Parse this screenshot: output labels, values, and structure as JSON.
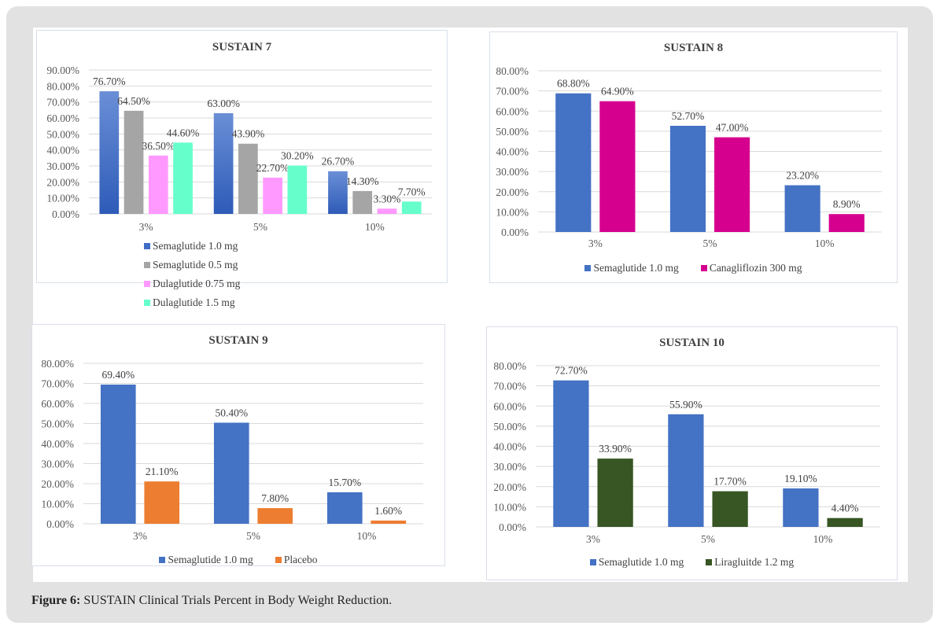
{
  "figure": {
    "label": "Figure 6:",
    "caption": "SUSTAIN Clinical Trials Percent in Body Weight Reduction."
  },
  "chart_data": [
    {
      "type": "bar",
      "title": "SUSTAIN 7",
      "categories": [
        "3%",
        "5%",
        "10%"
      ],
      "ylim": [
        0,
        90
      ],
      "yticks": [
        0,
        10,
        20,
        30,
        40,
        50,
        60,
        70,
        80,
        90
      ],
      "ytick_labels": [
        "0.00%",
        "10.00%",
        "20.00%",
        "30.00%",
        "40.00%",
        "50.00%",
        "60.00%",
        "70.00%",
        "80.00%",
        "90.00%"
      ],
      "grid": true,
      "legend_position": "bottom",
      "series": [
        {
          "name": "Semaglutide 1.0 mg",
          "color": "#3f6cc6",
          "gradient": true,
          "values": [
            76.7,
            63.0,
            26.7
          ],
          "labels": [
            "76.70%",
            "63.00%",
            "26.70%"
          ]
        },
        {
          "name": "Semaglutide 0.5 mg",
          "color": "#a5a5a5",
          "values": [
            64.5,
            43.9,
            14.3
          ],
          "labels": [
            "64.50%",
            "43.90%",
            "14.30%"
          ]
        },
        {
          "name": "Dulaglutide 0.75 mg",
          "color": "#ff99ff",
          "values": [
            36.5,
            22.7,
            3.3
          ],
          "labels": [
            "36.50%",
            "22.70%",
            "3.30%"
          ]
        },
        {
          "name": "Dulaglutide 1.5 mg",
          "color": "#66ffcc",
          "values": [
            44.6,
            30.2,
            7.7
          ],
          "labels": [
            "44.60%",
            "30.20%",
            "7.70%"
          ]
        }
      ]
    },
    {
      "type": "bar",
      "title": "SUSTAIN 8",
      "categories": [
        "3%",
        "5%",
        "10%"
      ],
      "ylim": [
        0,
        80
      ],
      "yticks": [
        0,
        10,
        20,
        30,
        40,
        50,
        60,
        70,
        80
      ],
      "ytick_labels": [
        "0.00%",
        "10.00%",
        "20.00%",
        "30.00%",
        "40.00%",
        "50.00%",
        "60.00%",
        "70.00%",
        "80.00%"
      ],
      "grid": true,
      "legend_position": "bottom",
      "series": [
        {
          "name": "Semaglutide 1.0 mg",
          "color": "#4472c4",
          "values": [
            68.8,
            52.7,
            23.2
          ],
          "labels": [
            "68.80%",
            "52.70%",
            "23.20%"
          ]
        },
        {
          "name": "Canagliflozin 300 mg",
          "color": "#d6008f",
          "values": [
            64.9,
            47.0,
            8.9
          ],
          "labels": [
            "64.90%",
            "47.00%",
            "8.90%"
          ]
        }
      ]
    },
    {
      "type": "bar",
      "title": "SUSTAIN 9",
      "categories": [
        "3%",
        "5%",
        "10%"
      ],
      "ylim": [
        0,
        80
      ],
      "yticks": [
        0,
        10,
        20,
        30,
        40,
        50,
        60,
        70,
        80
      ],
      "ytick_labels": [
        "0.00%",
        "10.00%",
        "20.00%",
        "30.00%",
        "40.00%",
        "50.00%",
        "60.00%",
        "70.00%",
        "80.00%"
      ],
      "grid": true,
      "legend_position": "bottom",
      "series": [
        {
          "name": "Semaglutide 1.0 mg",
          "color": "#4472c4",
          "values": [
            69.4,
            50.4,
            15.7
          ],
          "labels": [
            "69.40%",
            "50.40%",
            "15.70%"
          ]
        },
        {
          "name": "Placebo",
          "color": "#ed7d31",
          "values": [
            21.1,
            7.8,
            1.6
          ],
          "labels": [
            "21.10%",
            "7.80%",
            "1.60%"
          ]
        }
      ]
    },
    {
      "type": "bar",
      "title": "SUSTAIN 10",
      "categories": [
        "3%",
        "5%",
        "10%"
      ],
      "ylim": [
        0,
        80
      ],
      "yticks": [
        0,
        10,
        20,
        30,
        40,
        50,
        60,
        70,
        80
      ],
      "ytick_labels": [
        "0.00%",
        "10.00%",
        "20.00%",
        "30.00%",
        "40.00%",
        "50.00%",
        "60.00%",
        "70.00%",
        "80.00%"
      ],
      "grid": true,
      "legend_position": "bottom",
      "series": [
        {
          "name": "Semaglutide 1.0 mg",
          "color": "#4472c4",
          "values": [
            72.7,
            55.9,
            19.1
          ],
          "labels": [
            "72.70%",
            "55.90%",
            "19.10%"
          ]
        },
        {
          "name": "Liragluitde 1.2 mg",
          "color": "#375623",
          "values": [
            33.9,
            17.7,
            4.4
          ],
          "labels": [
            "33.90%",
            "17.70%",
            "4.40%"
          ]
        }
      ]
    }
  ]
}
